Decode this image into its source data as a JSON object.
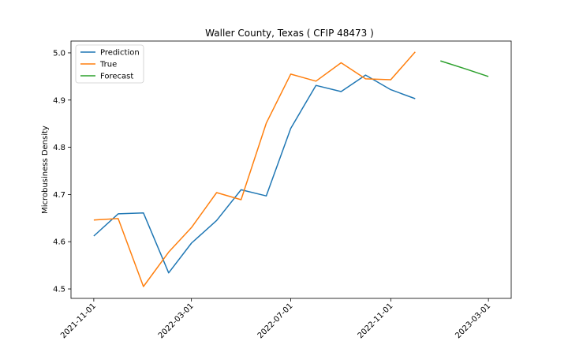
{
  "chart_data": {
    "type": "line",
    "title": "Waller County, Texas ( CFIP 48473 )",
    "xlabel": "",
    "ylabel": "Microbusiness Density",
    "ylim": [
      4.48,
      5.025
    ],
    "xlim": [
      "2021-10-04",
      "2023-03-29"
    ],
    "yticks": [
      4.5,
      4.6,
      4.7,
      4.8,
      4.9,
      5.0
    ],
    "yticklabels": [
      "4.5",
      "4.6",
      "4.7",
      "4.8",
      "4.9",
      "5.0"
    ],
    "xticks": [
      "2021-11-01",
      "2022-03-01",
      "2022-07-01",
      "2022-11-01",
      "2023-03-01"
    ],
    "legend_position": "top-left",
    "grid": false,
    "series": [
      {
        "name": "Prediction",
        "color": "#1f77b4",
        "x": [
          "2021-11-01",
          "2021-12-01",
          "2022-01-01",
          "2022-02-01",
          "2022-03-01",
          "2022-04-01",
          "2022-05-01",
          "2022-06-01",
          "2022-07-01",
          "2022-08-01",
          "2022-09-01",
          "2022-10-01",
          "2022-11-01",
          "2022-12-01"
        ],
        "y": [
          4.612,
          4.659,
          4.661,
          4.534,
          4.597,
          4.645,
          4.71,
          4.697,
          4.84,
          4.931,
          4.918,
          4.953,
          4.922,
          4.903
        ]
      },
      {
        "name": "True",
        "color": "#ff7f0e",
        "x": [
          "2021-11-01",
          "2021-12-01",
          "2022-01-01",
          "2022-02-01",
          "2022-03-01",
          "2022-04-01",
          "2022-05-01",
          "2022-06-01",
          "2022-07-01",
          "2022-08-01",
          "2022-09-01",
          "2022-10-01",
          "2022-11-01",
          "2022-12-01"
        ],
        "y": [
          4.646,
          4.649,
          4.505,
          4.578,
          4.63,
          4.704,
          4.689,
          4.851,
          4.955,
          4.94,
          4.979,
          4.945,
          4.943,
          5.002
        ]
      },
      {
        "name": "Forecast",
        "color": "#2ca02c",
        "x": [
          "2023-01-01",
          "2023-02-01",
          "2023-03-01"
        ],
        "y": [
          4.983,
          4.966,
          4.95
        ]
      }
    ]
  }
}
